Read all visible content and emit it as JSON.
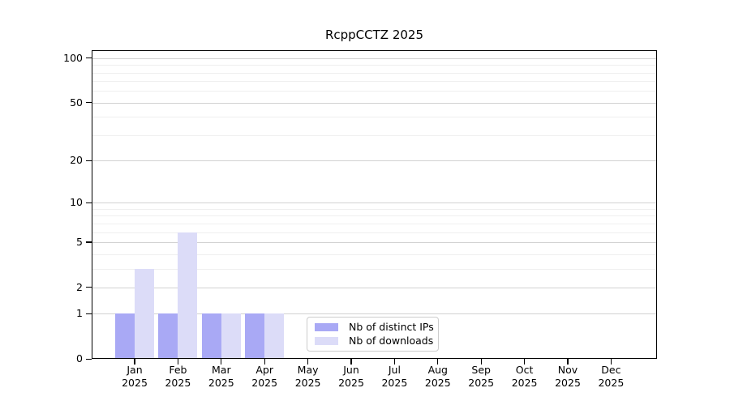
{
  "title": "RcppCCTZ 2025",
  "colors": {
    "ips_bar": "#a9a9f5",
    "downloads_bar": "#dcdcf8",
    "grid_major": "#d2d2d2",
    "grid_minor": "#efefef",
    "spine": "#000000",
    "legend_border": "#cccccc",
    "text": "#000000",
    "background": "#ffffff"
  },
  "chart_data": {
    "type": "bar",
    "title": "RcppCCTZ 2025",
    "x_months": [
      "Jan",
      "Feb",
      "Mar",
      "Apr",
      "May",
      "Jun",
      "Jul",
      "Aug",
      "Sep",
      "Oct",
      "Nov",
      "Dec"
    ],
    "x_year": "2025",
    "series": [
      {
        "name": "Nb of distinct IPs",
        "color": "#a9a9f5",
        "values": [
          1,
          1,
          1,
          1,
          0,
          0,
          0,
          0,
          0,
          0,
          0,
          0
        ]
      },
      {
        "name": "Nb of downloads",
        "color": "#dcdcf8",
        "values": [
          3,
          6,
          1,
          1,
          0,
          0,
          0,
          0,
          0,
          0,
          0,
          0
        ]
      }
    ],
    "yscale": "log1p",
    "ylim": [
      0,
      113
    ],
    "yticks": [
      0,
      1,
      2,
      5,
      10,
      20,
      50,
      100
    ],
    "yticks_minor": [
      3,
      4,
      6,
      7,
      8,
      9,
      30,
      40,
      60,
      70,
      80,
      90
    ],
    "grid": true,
    "legend_position": "lower center inside plot"
  }
}
